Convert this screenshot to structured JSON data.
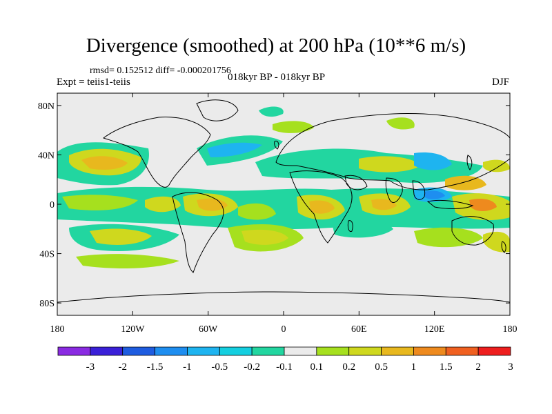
{
  "title": "Divergence (smoothed) at 200 hPa (10**6 m/s)",
  "stats": "rmsd= 0.152512 diff= -0.000201756",
  "left_label": "Expt = teiis1-teiis",
  "center_label": "018kyr BP - 018kyr BP",
  "right_label": "DJF",
  "map": {
    "lon_range": [
      -180,
      180
    ],
    "lat_range": [
      -90,
      90
    ],
    "x_ticks": [
      {
        "lon": -180,
        "label": "180"
      },
      {
        "lon": -120,
        "label": "120W"
      },
      {
        "lon": -60,
        "label": "60W"
      },
      {
        "lon": 0,
        "label": "0"
      },
      {
        "lon": 60,
        "label": "60E"
      },
      {
        "lon": 120,
        "label": "120E"
      },
      {
        "lon": 180,
        "label": "180"
      }
    ],
    "y_ticks": [
      {
        "lat": 80,
        "label": "80N"
      },
      {
        "lat": 40,
        "label": "40N"
      },
      {
        "lat": 0,
        "label": "0"
      },
      {
        "lat": -40,
        "label": "40S"
      },
      {
        "lat": -80,
        "label": "80S"
      }
    ]
  },
  "colorbar": {
    "boundaries": [
      "-3",
      "-2",
      "-1.5",
      "-1",
      "-0.5",
      "-0.2",
      "-0.1",
      "0.1",
      "0.2",
      "0.5",
      "1",
      "1.5",
      "2",
      "3"
    ],
    "colors": [
      "#8a2be2",
      "#3a20d8",
      "#1e5ce0",
      "#1e8ef0",
      "#1eb4f0",
      "#14cfe0",
      "#22d6a0",
      "#ebebeb",
      "#a6e01e",
      "#cfd81e",
      "#e8b81e",
      "#ee8a1e",
      "#f06020",
      "#ee1e1e"
    ]
  }
}
